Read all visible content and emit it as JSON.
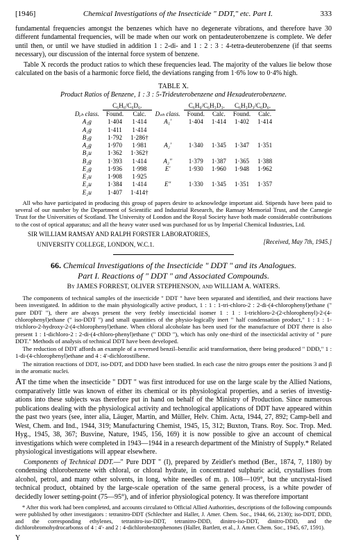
{
  "header": {
    "year": "[1946]",
    "title": "Chemical Investigations of the Insecticide \" DDT,\" etc.  Part I.",
    "page": "333"
  },
  "intro1": "fundamental frequencies amongst the benzenes which have no degenerate vibrations, and therefore have 30 different fundamental frequencies, will be made when our work on pentadeuterobenzene is complete.  We defer until then, or until we have studied in addition 1 : 2-di- and 1 : 2 : 3 : 4-tetra-deuterobenzene (if that seems necessary), our discussion of the internal force system of benzene.",
  "intro2": "Table X records the product ratios to which these frequencies lead.  The majority of the values lie below those calculated on the basis of a harmonic force field, the deviations ranging from 1·6% low to 0·4% high.",
  "tableX": {
    "caption": "TABLE X.",
    "sub": "Product Ratios of Benzene, 1 : 3 : 5-Trideuterobenzene and Hexadeuterobenzene.",
    "groupHeaders": [
      "C₆H₆/C₆D₆.",
      "C₆H₆/C₆H₃D₃.",
      "C₆H₃D₃/C₆D₆."
    ],
    "subHeaders": [
      "Dₑₕ class.",
      "Found.",
      "Calc.",
      "Dₛₕ class.",
      "Found.",
      "Calc.",
      "Found.",
      "Calc."
    ],
    "rows": [
      [
        "A₁g",
        "1·404",
        "1·414",
        "A₁′",
        "1·404",
        "1·414",
        "1·402",
        "1·414"
      ],
      [
        "A₂g",
        "1·411",
        "1·414",
        "",
        "",
        "",
        "",
        ""
      ],
      [
        "B₁g",
        "1·792",
        "1·286†",
        "",
        "",
        "",
        "",
        ""
      ],
      [
        "A₂g",
        "1·970",
        "1·981",
        "A₂′",
        "1·340",
        "1·345",
        "1·347",
        "1·351"
      ],
      [
        "B₂u",
        "1·362",
        "1·362†",
        "",
        "",
        "",
        "",
        ""
      ],
      [
        "B₂g",
        "1·393",
        "1·414",
        "A₂″",
        "1·379",
        "1·387",
        "1·365",
        "1·388"
      ],
      [
        "E₂g",
        "1·936",
        "1·998",
        "E′",
        "1·930",
        "1·960",
        "1·948",
        "1·962"
      ],
      [
        "E₁u",
        "1·908",
        "1·925",
        "",
        "",
        "",
        "",
        ""
      ],
      [
        "E₂u",
        "1·384",
        "1·414",
        "E″",
        "1·330",
        "1·345",
        "1·351",
        "1·357"
      ],
      [
        "E₂u",
        "1·407",
        "1·414†",
        "",
        "",
        "",
        "",
        ""
      ]
    ]
  },
  "ack1": "All who have participated in producing this group of papers desire to acknowledge important aid.  Stipends have been paid to several of our number by the Department of Scientific and Industrial Research, the Ramsay Memorial Trust, and the Carnegie Trust for the Universities of Scotland.  The University of London and the Royal Society have both made considerable contributions to the cost of optical apparatus; and all the heavy water used was purchased for us by Imperial Chemical Industries, Ltd.",
  "addr": "SIR WILLIAM RAMSAY AND RALPH FORSTER LABORATORIES,",
  "addr2": "UNIVERSITY COLLEGE, LONDON, W.C.1.",
  "date": "[Received, May 7th, 1945.]",
  "article": {
    "num": "66.",
    "title1": "Chemical Investigations of the Insecticide \" DDT \" and its Analogues.",
    "title2": "Part I.  Reactions of \" DDT \" and Associated Compounds.",
    "by": "By JAMES FORREST, OLIVER STEPHENSON, and WILLIAM A. WATERS."
  },
  "abs1": "The components of technical samples of the insecticide \" DDT \" have been separated and identified, and their reactions have been investigated.  In addition to the main physiologically active product, 1 : 1 : 1-tri-chloro-2 : 2-di-(4-chlorophenyl)ethane (\" pure DDT \"), there are always present the very feebly insecticidal isomer 1 : 1 : 1-trichloro-2-(2-chlorophenyl)-2-(4-chlorophenyl)ethane (\" iso-DDT \") and small quantities of the physio-logically inert \" half condensation product,\" 1 : 1 : 1-trichloro-2-hydroxy-2-(4-chlorophenyl)ethane.  When chloral alcoholate has been used for the manufacture of DDT there is also present 1 : 1-dichloro-2 : 2-di-(4-chloro-phenyl)ethane (\" DDD \"), which has only one-third of the insecticidal activity of \" pure DDT.\"  Methods of analysis of technical DDT have been developed.",
  "abs2": "The reduction of DDT affords an example of a reversed benzil–benzilic acid transformation, there being produced \" DDD,\" 1 : 1-di-(4-chlorophenyl)ethane and 4 : 4′-dichlorostilbene.",
  "abs3": "The nitration reactions of DDT, iso-DDT, and DDD have been studied.  In each case the nitro groups enter the positions 3 and β in the aromatic nuclei.",
  "body1": "AT the time when the insecticide \" DDT \" was first introduced for use on the large scale by the Allied Nations, comparatively little was known of either its chemical or its physiological properties, and a series of investig-ations into these subjects was therefore put in hand on behalf of the Ministry of Production.  Since numerous publications dealing with the physiological activity and technological applications of DDT have appeared within the past two years (see, inter alia, Läuger, Martin, and Müller, Helv. Chim. Acta, 1944, 27, 892; Camp-bell and West, Chem. and Ind., 1944, 319; Manufacturing Chemist, 1945, 15, 312; Buxton, Trans. Roy. Soc. Trop. Med. Hyg., 1945, 38, 367; Busvine, Nature, 1945, 156, 169) it is now possible to give an account of chemical investigations which were completed in 1943—1944 in a research department of the Ministry of Supply.*  Related physiological investigations will appear elsewhere.",
  "body2": "Components of Technical DDT.—\" Pure DDT \" (I), prepared by Zeidler's method (Ber., 1874, 7, 1180) by condensing chlorobenzene with chloral, or chloral hydrate, in concentrated sulphuric acid, crystallises from alcohol, petrol, and many other solvents, in long, white needles of m. p. 108—109°, but the uncrystal-lised technical product, obtained by the large-scale operation of the same general process, is a white powder of decidedly lower setting-point (75—95°), and of inferior physiological potency.  It was therefore important",
  "footnote": "* After this work had been completed, and accounts circulated to Official Allied Authorities, descriptions of the following compounds were published by other investigators : tetranitro-DDT (Schlechter and Haller, J. Amer. Chem. Soc., 1944, 66, 2130); iso-DDT, DDD, and the corresponding ethylenes, tetranitro-iso-DDT, tetranitro-DDD, dinitro-iso-DDT, dinitro-DDD, and the dichlorobromohydrocarbonss of 4 : 4′- and 2 : 4-dichlorobenzophenones (Haller, Bartlett, et al., J. Amer. Chem. Soc., 1945, 67, 1591).",
  "footerY": "Y"
}
